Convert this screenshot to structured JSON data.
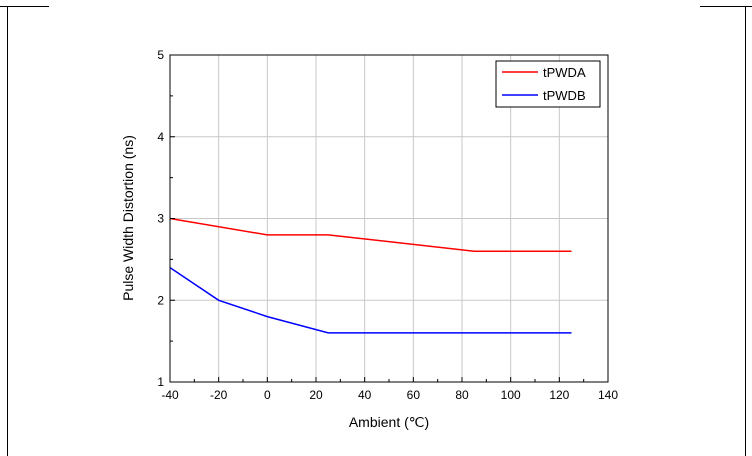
{
  "chart_data": {
    "type": "line",
    "xlabel": "Ambient (℃)",
    "ylabel": "Pulse Width Distortion (ns)",
    "xlim": [
      -40,
      140
    ],
    "ylim": [
      1,
      5
    ],
    "x_ticks": [
      "-40",
      "-20",
      "0",
      "20",
      "40",
      "60",
      "80",
      "100",
      "120",
      "140"
    ],
    "y_ticks": [
      "1",
      "2",
      "3",
      "4",
      "5"
    ],
    "grid": true,
    "legend_position": "top-right",
    "series": [
      {
        "name": "tPWDA",
        "color": "#ff0000",
        "x": [
          -40,
          0,
          25,
          85,
          125
        ],
        "y": [
          3.0,
          2.8,
          2.8,
          2.6,
          2.6
        ]
      },
      {
        "name": "tPWDB",
        "color": "#0000ff",
        "x": [
          -40,
          -20,
          0,
          25,
          85,
          125
        ],
        "y": [
          2.4,
          2.0,
          1.8,
          1.6,
          1.6,
          1.6
        ]
      }
    ]
  }
}
